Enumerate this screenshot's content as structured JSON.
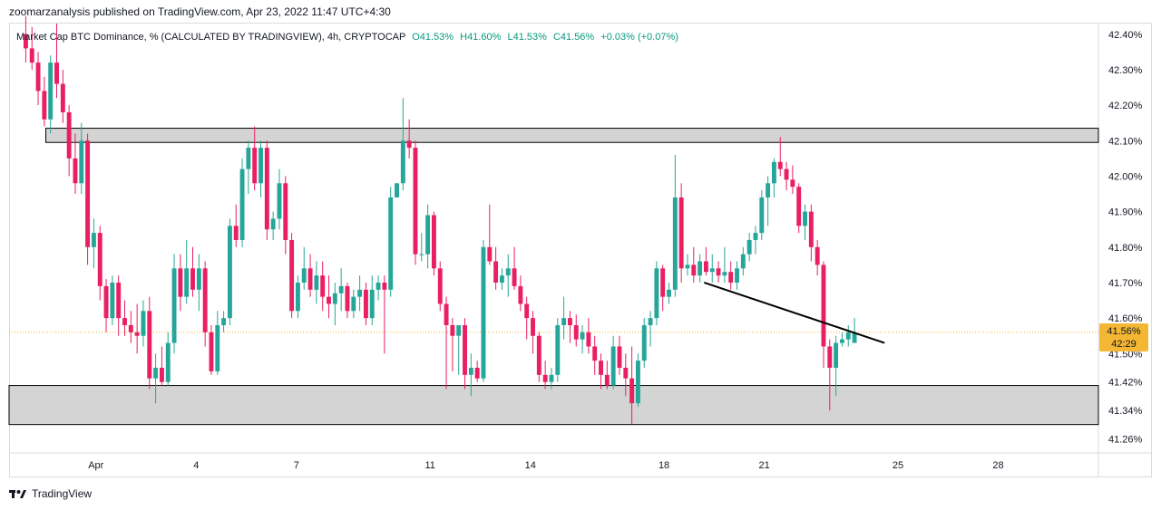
{
  "header": {
    "published": "zoomarzanalysis published on TradingView.com, Apr 23, 2022 11:47 UTC+4:30"
  },
  "legend": {
    "symbol": "Market Cap BTC Dominance, % (CALCULATED BY TRADINGVIEW), 4h, CRYPTOCAP",
    "open": "O41.53%",
    "high": "H41.60%",
    "low": "L41.53%",
    "close": "C41.56%",
    "change": "+0.03% (+0.07%)"
  },
  "price_tag": {
    "price": "41.56%",
    "countdown": "42:29"
  },
  "footer": {
    "brand": "TradingView",
    "logo": "tradingview-logo-icon"
  },
  "colors": {
    "up": "#26a69a",
    "down": "#e91e63",
    "zone": "#cfcfcf",
    "tag": "#f3b733",
    "trend": "#000000"
  },
  "chart_data": {
    "type": "candlestick",
    "y_ticks": [
      "42.40%",
      "42.30%",
      "42.20%",
      "42.10%",
      "42.00%",
      "41.90%",
      "41.80%",
      "41.70%",
      "41.60%",
      "41.50%",
      "41.42%",
      "41.34%",
      "41.26%"
    ],
    "ylim": [
      41.22,
      42.43
    ],
    "x_tick_labels": [
      {
        "label": "Apr",
        "day": 1
      },
      {
        "label": "4",
        "day": 4
      },
      {
        "label": "7",
        "day": 7
      },
      {
        "label": "11",
        "day": 11
      },
      {
        "label": "14",
        "day": 14
      },
      {
        "label": "18",
        "day": 18
      },
      {
        "label": "21",
        "day": 21
      },
      {
        "label": "25",
        "day": 25
      },
      {
        "label": "28",
        "day": 28
      }
    ],
    "xlim_days": [
      -1.6,
      31.0
    ],
    "zones": [
      {
        "name": "resistance",
        "from_day": -0.5,
        "to_day": 31.0,
        "low": 42.095,
        "high": 42.135
      },
      {
        "name": "support",
        "from_day": -1.6,
        "to_day": 31.0,
        "low": 41.3,
        "high": 41.41
      }
    ],
    "trendline": {
      "from": {
        "day": 19.2,
        "value": 41.7
      },
      "to": {
        "day": 24.6,
        "value": 41.53
      }
    },
    "current_price": 41.56,
    "candles": [
      [
        42.4,
        42.45,
        42.32,
        42.36
      ],
      [
        42.36,
        42.42,
        42.3,
        42.32
      ],
      [
        42.32,
        42.35,
        42.2,
        42.24
      ],
      [
        42.24,
        42.28,
        42.14,
        42.16
      ],
      [
        42.16,
        42.34,
        42.12,
        42.32
      ],
      [
        42.32,
        42.43,
        42.22,
        42.26
      ],
      [
        42.26,
        42.3,
        42.15,
        42.18
      ],
      [
        42.18,
        42.2,
        42.0,
        42.05
      ],
      [
        42.05,
        42.12,
        41.95,
        41.98
      ],
      [
        41.98,
        42.15,
        41.95,
        42.1
      ],
      [
        42.1,
        42.12,
        41.75,
        41.8
      ],
      [
        41.8,
        41.88,
        41.74,
        41.84
      ],
      [
        41.84,
        41.86,
        41.65,
        41.69
      ],
      [
        41.69,
        41.71,
        41.56,
        41.6
      ],
      [
        41.6,
        41.72,
        41.58,
        41.7
      ],
      [
        41.7,
        41.72,
        41.55,
        41.6
      ],
      [
        41.6,
        41.65,
        41.55,
        41.58
      ],
      [
        41.58,
        41.62,
        41.53,
        41.56
      ],
      [
        41.56,
        41.64,
        41.5,
        41.55
      ],
      [
        41.55,
        41.65,
        41.52,
        41.62
      ],
      [
        41.62,
        41.66,
        41.4,
        41.43
      ],
      [
        41.43,
        41.5,
        41.36,
        41.46
      ],
      [
        41.46,
        41.52,
        41.41,
        41.42
      ],
      [
        41.42,
        41.56,
        41.41,
        41.53
      ],
      [
        41.53,
        41.78,
        41.5,
        41.74
      ],
      [
        41.74,
        41.78,
        41.62,
        41.66
      ],
      [
        41.66,
        41.82,
        41.64,
        41.74
      ],
      [
        41.74,
        41.8,
        41.66,
        41.68
      ],
      [
        41.68,
        41.78,
        41.62,
        41.74
      ],
      [
        41.74,
        41.76,
        41.52,
        41.56
      ],
      [
        41.56,
        41.58,
        41.44,
        41.45
      ],
      [
        41.45,
        41.62,
        41.44,
        41.58
      ],
      [
        41.58,
        41.62,
        41.56,
        41.6
      ],
      [
        41.6,
        41.88,
        41.58,
        41.86
      ],
      [
        41.86,
        41.92,
        41.8,
        41.82
      ],
      [
        41.82,
        42.05,
        41.8,
        42.02
      ],
      [
        42.02,
        42.1,
        41.95,
        42.08
      ],
      [
        42.08,
        42.14,
        41.96,
        41.98
      ],
      [
        41.98,
        42.1,
        41.94,
        42.08
      ],
      [
        42.08,
        42.1,
        41.82,
        41.85
      ],
      [
        41.85,
        41.9,
        41.82,
        41.88
      ],
      [
        41.88,
        42.02,
        41.85,
        41.98
      ],
      [
        41.98,
        42.0,
        41.78,
        41.82
      ],
      [
        41.82,
        41.84,
        41.6,
        41.62
      ],
      [
        41.62,
        41.72,
        41.6,
        41.7
      ],
      [
        41.7,
        41.8,
        41.68,
        41.74
      ],
      [
        41.74,
        41.78,
        41.66,
        41.68
      ],
      [
        41.68,
        41.76,
        41.64,
        41.72
      ],
      [
        41.72,
        41.76,
        41.62,
        41.66
      ],
      [
        41.66,
        41.72,
        41.6,
        41.64
      ],
      [
        41.64,
        41.7,
        41.58,
        41.67
      ],
      [
        41.67,
        41.74,
        41.62,
        41.69
      ],
      [
        41.69,
        41.7,
        41.6,
        41.62
      ],
      [
        41.62,
        41.68,
        41.6,
        41.66
      ],
      [
        41.66,
        41.72,
        41.62,
        41.68
      ],
      [
        41.68,
        41.7,
        41.58,
        41.6
      ],
      [
        41.6,
        41.72,
        41.58,
        41.68
      ],
      [
        41.68,
        41.72,
        41.65,
        41.7
      ],
      [
        41.7,
        41.72,
        41.5,
        41.68
      ],
      [
        41.68,
        41.97,
        41.66,
        41.94
      ],
      [
        41.94,
        41.98,
        41.95,
        41.98
      ],
      [
        41.98,
        42.22,
        41.96,
        42.1
      ],
      [
        42.1,
        42.16,
        42.05,
        42.08
      ],
      [
        42.08,
        42.1,
        41.75,
        41.78
      ],
      [
        41.78,
        41.84,
        41.76,
        41.78
      ],
      [
        41.78,
        41.92,
        41.74,
        41.89
      ],
      [
        41.89,
        41.9,
        41.72,
        41.74
      ],
      [
        41.74,
        41.76,
        41.62,
        41.64
      ],
      [
        41.64,
        41.66,
        41.4,
        41.58
      ],
      [
        41.58,
        41.6,
        41.45,
        41.55
      ],
      [
        41.55,
        41.58,
        41.44,
        41.58
      ],
      [
        41.58,
        41.6,
        41.4,
        41.44
      ],
      [
        41.44,
        41.5,
        41.38,
        41.46
      ],
      [
        41.46,
        41.48,
        41.42,
        41.43
      ],
      [
        41.43,
        41.82,
        41.42,
        41.8
      ],
      [
        41.8,
        41.92,
        41.75,
        41.76
      ],
      [
        41.76,
        41.8,
        41.68,
        41.7
      ],
      [
        41.7,
        41.74,
        41.68,
        41.72
      ],
      [
        41.72,
        41.78,
        41.66,
        41.74
      ],
      [
        41.74,
        41.8,
        41.68,
        41.69
      ],
      [
        41.69,
        41.72,
        41.62,
        41.64
      ],
      [
        41.64,
        41.66,
        41.54,
        41.6
      ],
      [
        41.6,
        41.62,
        41.5,
        41.55
      ],
      [
        41.55,
        41.56,
        41.42,
        41.44
      ],
      [
        41.44,
        41.48,
        41.4,
        41.42
      ],
      [
        41.42,
        41.46,
        41.4,
        41.44
      ],
      [
        41.44,
        41.6,
        41.42,
        41.58
      ],
      [
        41.58,
        41.66,
        41.54,
        41.6
      ],
      [
        41.6,
        41.62,
        41.53,
        41.58
      ],
      [
        41.58,
        41.61,
        41.52,
        41.54
      ],
      [
        41.54,
        41.58,
        41.5,
        41.56
      ],
      [
        41.56,
        41.6,
        41.5,
        41.52
      ],
      [
        41.52,
        41.55,
        41.44,
        41.48
      ],
      [
        41.48,
        41.5,
        41.4,
        41.44
      ],
      [
        41.44,
        41.48,
        41.4,
        41.41
      ],
      [
        41.41,
        41.55,
        41.4,
        41.52
      ],
      [
        41.52,
        41.55,
        41.44,
        41.46
      ],
      [
        41.46,
        41.5,
        41.38,
        41.43
      ],
      [
        41.43,
        41.52,
        41.3,
        41.36
      ],
      [
        41.36,
        41.5,
        41.35,
        41.48
      ],
      [
        41.48,
        41.6,
        41.46,
        41.58
      ],
      [
        41.58,
        41.62,
        41.52,
        41.6
      ],
      [
        41.6,
        41.76,
        41.58,
        41.74
      ],
      [
        41.74,
        41.75,
        41.62,
        41.66
      ],
      [
        41.66,
        41.7,
        41.64,
        41.68
      ],
      [
        41.68,
        42.06,
        41.66,
        41.94
      ],
      [
        41.94,
        41.98,
        41.7,
        41.74
      ],
      [
        41.74,
        41.78,
        41.72,
        41.75
      ],
      [
        41.75,
        41.8,
        41.7,
        41.72
      ],
      [
        41.72,
        41.78,
        41.7,
        41.76
      ],
      [
        41.76,
        41.8,
        41.72,
        41.73
      ],
      [
        41.73,
        41.78,
        41.7,
        41.74
      ],
      [
        41.74,
        41.76,
        41.7,
        41.72
      ],
      [
        41.72,
        41.8,
        41.7,
        41.73
      ],
      [
        41.73,
        41.76,
        41.68,
        41.7
      ],
      [
        41.7,
        41.76,
        41.68,
        41.74
      ],
      [
        41.74,
        41.8,
        41.72,
        41.78
      ],
      [
        41.78,
        41.84,
        41.76,
        41.82
      ],
      [
        41.82,
        41.86,
        41.78,
        41.84
      ],
      [
        41.84,
        41.96,
        41.82,
        41.94
      ],
      [
        41.94,
        42.0,
        41.86,
        41.98
      ],
      [
        41.98,
        42.05,
        41.94,
        42.04
      ],
      [
        42.04,
        42.11,
        42.0,
        42.02
      ],
      [
        42.02,
        42.04,
        41.96,
        41.99
      ],
      [
        41.99,
        42.03,
        41.95,
        41.97
      ],
      [
        41.97,
        41.98,
        41.84,
        41.86
      ],
      [
        41.86,
        41.92,
        41.82,
        41.9
      ],
      [
        41.9,
        41.92,
        41.76,
        41.8
      ],
      [
        41.8,
        41.82,
        41.72,
        41.75
      ],
      [
        41.75,
        41.76,
        41.46,
        41.52
      ],
      [
        41.52,
        41.54,
        41.34,
        41.46
      ],
      [
        41.46,
        41.55,
        41.38,
        41.53
      ],
      [
        41.53,
        41.56,
        41.52,
        41.54
      ],
      [
        41.54,
        41.58,
        41.52,
        41.56
      ],
      [
        41.53,
        41.6,
        41.53,
        41.56
      ]
    ]
  }
}
